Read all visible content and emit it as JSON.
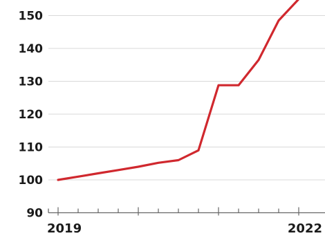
{
  "chart_data": {
    "type": "line",
    "title": "",
    "xlabel": "",
    "ylabel": "",
    "ylim": [
      90,
      155
    ],
    "xlim": [
      2019,
      2022.2
    ],
    "yticks": [
      90,
      100,
      110,
      120,
      130,
      140,
      150
    ],
    "xtick_labels": [
      {
        "x": 2019,
        "label": "2019"
      },
      {
        "x": 2022,
        "label": "2022"
      }
    ],
    "grid": true,
    "colors": {
      "line": "#d0282e",
      "grid": "#d9d9d9",
      "axis": "#666666"
    },
    "series": [
      {
        "values": [
          {
            "x": 2019.0,
            "y": 100.0
          },
          {
            "x": 2019.25,
            "y": 101.0
          },
          {
            "x": 2019.5,
            "y": 102.0
          },
          {
            "x": 2019.75,
            "y": 103.0
          },
          {
            "x": 2020.0,
            "y": 104.0
          },
          {
            "x": 2020.25,
            "y": 105.2
          },
          {
            "x": 2020.5,
            "y": 106.0
          },
          {
            "x": 2020.75,
            "y": 109.0
          },
          {
            "x": 2021.0,
            "y": 128.8
          },
          {
            "x": 2021.25,
            "y": 128.8
          },
          {
            "x": 2021.5,
            "y": 136.5
          },
          {
            "x": 2021.75,
            "y": 148.5
          },
          {
            "x": 2022.0,
            "y": 155.0
          }
        ]
      }
    ]
  }
}
